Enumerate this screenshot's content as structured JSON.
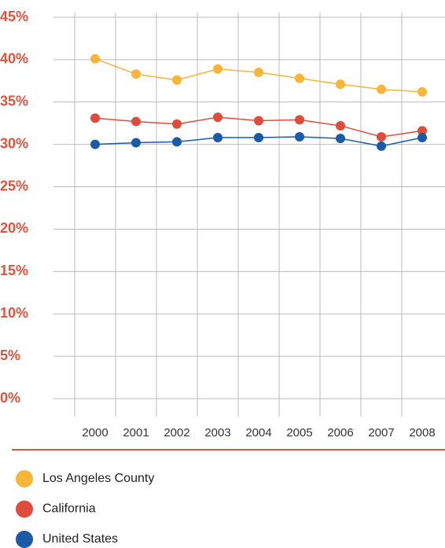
{
  "chart_data": {
    "type": "line",
    "categories": [
      "2000",
      "2001",
      "2002",
      "2003",
      "2004",
      "2005",
      "2006",
      "2007",
      "2008"
    ],
    "series": [
      {
        "name": "Los Angeles County",
        "color": "#f9b43a",
        "values": [
          40.1,
          38.3,
          37.6,
          38.9,
          38.5,
          37.8,
          37.1,
          36.5,
          36.2
        ]
      },
      {
        "name": "California",
        "color": "#e04c3c",
        "values": [
          33.1,
          32.7,
          32.4,
          33.2,
          32.8,
          32.9,
          32.2,
          30.9,
          31.6
        ]
      },
      {
        "name": "United States",
        "color": "#1a5aa6",
        "values": [
          30.0,
          30.2,
          30.3,
          30.8,
          30.8,
          30.9,
          30.7,
          29.8,
          30.8
        ]
      }
    ],
    "ylim": [
      0,
      45
    ],
    "yticks": [
      {
        "value": 0,
        "label": "0%"
      },
      {
        "value": 5,
        "label": "5%"
      },
      {
        "value": 10,
        "label": "10%"
      },
      {
        "value": 15,
        "label": "15%"
      },
      {
        "value": 20,
        "label": "20%"
      },
      {
        "value": 25,
        "label": "25%"
      },
      {
        "value": 30,
        "label": "30%"
      },
      {
        "value": 35,
        "label": "35%"
      },
      {
        "value": 40,
        "label": "40%"
      },
      {
        "value": 45,
        "label": "45%"
      }
    ],
    "grid": true
  }
}
